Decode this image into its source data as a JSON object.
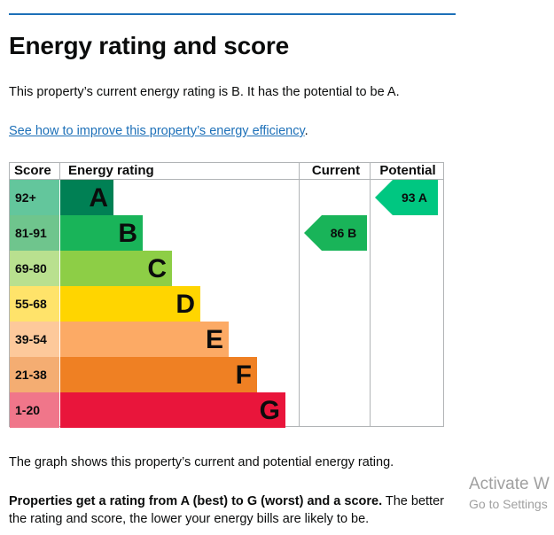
{
  "page": {
    "title": "Energy rating and score",
    "intro": "This property’s current energy rating is B. It has the potential to be A.",
    "improve_link": "See how to improve this property’s energy efficiency",
    "improve_link_suffix": ".",
    "caption": "The graph shows this property’s current and potential energy rating.",
    "legend_bold": "Properties get a rating from A (best) to G (worst) and a score.",
    "legend_rest": " The better the rating and score, the lower your energy bills are likely to be."
  },
  "graph": {
    "headers": {
      "score": "Score",
      "energy_rating": "Energy rating",
      "current": "Current",
      "potential": "Potential"
    },
    "bands": [
      {
        "range": "92+",
        "letter": "A",
        "color": "#008054",
        "score_bg": "#63c69c"
      },
      {
        "range": "81-91",
        "letter": "B",
        "color": "#19b459",
        "score_bg": "#6fc58d"
      },
      {
        "range": "69-80",
        "letter": "C",
        "color": "#8dce46",
        "score_bg": "#b9e08f"
      },
      {
        "range": "55-68",
        "letter": "D",
        "color": "#ffd500",
        "score_bg": "#ffe36a"
      },
      {
        "range": "39-54",
        "letter": "E",
        "color": "#fcaa65",
        "score_bg": "#fdc99b"
      },
      {
        "range": "21-38",
        "letter": "F",
        "color": "#ef8023",
        "score_bg": "#f4ad72"
      },
      {
        "range": "1-20",
        "letter": "G",
        "color": "#e9153b",
        "score_bg": "#f0768a"
      }
    ],
    "current": {
      "score": 86,
      "band": "B",
      "label": "86 B",
      "color": "#19b459"
    },
    "potential": {
      "score": 93,
      "band": "A",
      "label": "93 A",
      "color": "#00c781"
    }
  },
  "watermark": {
    "line1": "Activate W",
    "line2": "Go to Settings"
  }
}
